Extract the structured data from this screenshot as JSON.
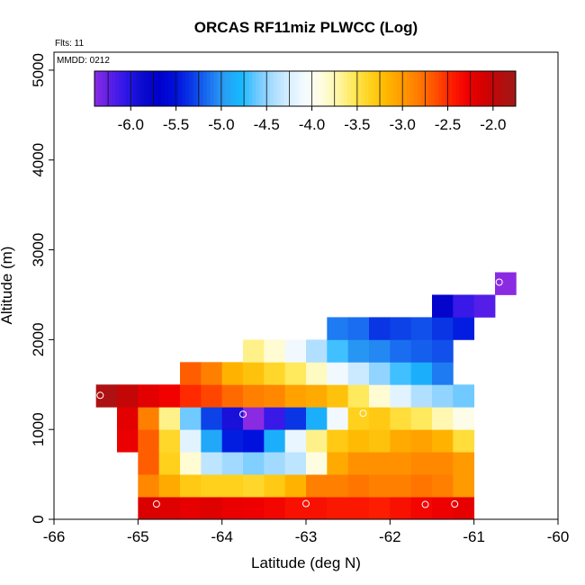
{
  "chart_data": {
    "type": "heatmap",
    "title": "ORCAS RF11miz PLWCC (Log)",
    "xlabel": "Latitude (deg N)",
    "ylabel": "Altitude (m)",
    "flights_text": "Flts: 11",
    "date_text": "MMDD: 0212",
    "xlim": [
      -66,
      -60
    ],
    "ylim": [
      0,
      5200
    ],
    "xticks": [
      -66,
      -65,
      -64,
      -63,
      -62,
      -61,
      -60
    ],
    "xtick_labels": [
      "-66",
      "-65",
      "-64",
      "-63",
      "-62",
      "-61",
      "-60"
    ],
    "yticks": [
      0,
      1000,
      2000,
      3000,
      4000,
      5000
    ],
    "ytick_labels": [
      "0",
      "1000",
      "2000",
      "3000",
      "4000",
      "5000"
    ],
    "cell_lon_step": 0.25,
    "cell_alt_step": 250,
    "colorbar": {
      "range": [
        -6.4,
        -1.75
      ],
      "ticks": [
        -6.0,
        -5.5,
        -5.0,
        -4.5,
        -4.0,
        -3.5,
        -3.0,
        -2.5,
        -2.0
      ],
      "tick_labels": [
        "-6.0",
        "-5.5",
        "-5.0",
        "-4.5",
        "-4.0",
        "-3.5",
        "-3.0",
        "-2.5",
        "-2.0"
      ],
      "colors": [
        "#8a2be2",
        "#5a1fe8",
        "#2a16e6",
        "#0a0acc",
        "#0000cc",
        "#0010dd",
        "#0a3ae6",
        "#1a6ef0",
        "#2a9ef4",
        "#14b8ff",
        "#6cc8ff",
        "#a8dcff",
        "#d8efff",
        "#f5fbff",
        "#fffde0",
        "#fff6a8",
        "#ffe858",
        "#ffd21e",
        "#ffb800",
        "#ff9a00",
        "#ff7a00",
        "#ff5200",
        "#ff2000",
        "#f00000",
        "#d40000",
        "#b80c0c",
        "#a01818"
      ]
    },
    "rows": [
      {
        "alt": 125,
        "x0": -65.0,
        "values": [
          -2.15,
          -2.18,
          -2.22,
          -2.18,
          -2.25,
          -2.28,
          -2.32,
          -2.38,
          -2.38,
          -2.42,
          -2.42,
          -2.45,
          -2.38,
          -2.32,
          -2.28,
          -2.22
        ]
      },
      {
        "alt": 375,
        "x0": -65.0,
        "values": [
          -2.9,
          -3.1,
          -3.3,
          -3.35,
          -3.35,
          -3.4,
          -3.3,
          -3.15,
          -2.85,
          -2.85,
          -2.8,
          -2.85,
          -2.85,
          -2.8,
          -2.85,
          -3.0
        ]
      },
      {
        "alt": 625,
        "x0": -65.0,
        "values": [
          -2.7,
          -3.35,
          -3.85,
          -4.35,
          -4.45,
          -4.55,
          -4.45,
          -4.35,
          -3.9,
          -3.1,
          -2.95,
          -2.95,
          -2.95,
          -2.9,
          -2.9,
          -3.0
        ]
      },
      {
        "alt": 875,
        "x0": -65.25,
        "values": [
          -2.25,
          -2.7,
          -3.4,
          -4.2,
          -4.9,
          -5.45,
          -5.5,
          -4.85,
          -4.15,
          -3.65,
          -3.3,
          -3.2,
          -3.25,
          -3.1,
          -3.05,
          -3.15,
          -3.45
        ]
      },
      {
        "alt": 1125,
        "x0": -65.25,
        "values": [
          -2.2,
          -2.85,
          -3.65,
          -4.6,
          -5.3,
          -5.95,
          -6.4,
          -6.1,
          -5.35,
          -4.85,
          -4.1,
          -3.35,
          -3.3,
          -3.45,
          -3.55,
          -3.75,
          -3.95
        ]
      },
      {
        "alt": 1375,
        "x0": -65.5,
        "values": [
          -1.85,
          -2.0,
          -2.2,
          -2.3,
          -2.5,
          -2.6,
          -2.75,
          -2.85,
          -2.9,
          -3.05,
          -3.1,
          -3.25,
          -3.55,
          -3.85,
          -4.2,
          -4.4,
          -4.5,
          -4.6
        ]
      },
      {
        "alt": 1625,
        "x0": -64.5,
        "values": [
          -2.7,
          -2.85,
          -3.15,
          -3.25,
          -3.4,
          -3.55,
          -3.8,
          -4.1,
          -4.3,
          -4.5,
          -4.7,
          -4.85,
          -5.1
        ]
      },
      {
        "alt": 1875,
        "x0": -63.75,
        "values": [
          -3.65,
          -3.85,
          -4.1,
          -4.4,
          -4.7,
          -5.0,
          -5.05,
          -5.15,
          -5.2,
          -5.25
        ]
      },
      {
        "alt": 2125,
        "x0": -62.75,
        "values": [
          -5.1,
          -5.15,
          -5.35,
          -5.3,
          -5.25,
          -5.35,
          -5.45
        ]
      },
      {
        "alt": 2375,
        "x0": -61.5,
        "values": [
          -5.75,
          -6.1,
          -6.2
        ]
      },
      {
        "alt": 2625,
        "x0": -60.75,
        "values": [
          -6.4
        ]
      }
    ],
    "markers": [
      {
        "lat": -65.45,
        "alt": 1380
      },
      {
        "lat": -64.78,
        "alt": 170
      },
      {
        "lat": -63.75,
        "alt": 1170
      },
      {
        "lat": -62.32,
        "alt": 1180
      },
      {
        "lat": -63.0,
        "alt": 175
      },
      {
        "lat": -61.58,
        "alt": 165
      },
      {
        "lat": -61.23,
        "alt": 170
      },
      {
        "lat": -60.7,
        "alt": 2640
      }
    ]
  }
}
